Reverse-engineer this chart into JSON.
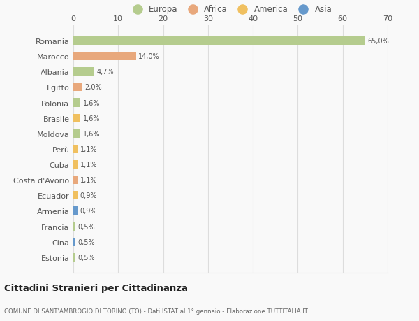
{
  "countries": [
    "Romania",
    "Marocco",
    "Albania",
    "Egitto",
    "Polonia",
    "Brasile",
    "Moldova",
    "Perù",
    "Cuba",
    "Costa d'Avorio",
    "Ecuador",
    "Armenia",
    "Francia",
    "Cina",
    "Estonia"
  ],
  "values": [
    65.0,
    14.0,
    4.7,
    2.0,
    1.6,
    1.6,
    1.6,
    1.1,
    1.1,
    1.1,
    0.9,
    0.9,
    0.5,
    0.5,
    0.5
  ],
  "labels": [
    "65,0%",
    "14,0%",
    "4,7%",
    "2,0%",
    "1,6%",
    "1,6%",
    "1,6%",
    "1,1%",
    "1,1%",
    "1,1%",
    "0,9%",
    "0,9%",
    "0,5%",
    "0,5%",
    "0,5%"
  ],
  "continents": [
    "Europa",
    "Africa",
    "Europa",
    "Africa",
    "Europa",
    "America",
    "Europa",
    "America",
    "America",
    "Africa",
    "America",
    "Asia",
    "Europa",
    "Asia",
    "Europa"
  ],
  "continent_colors": {
    "Europa": "#b5cc8e",
    "Africa": "#e8a87c",
    "America": "#f0c060",
    "Asia": "#6699cc"
  },
  "legend_order": [
    "Europa",
    "Africa",
    "America",
    "Asia"
  ],
  "title": "Cittadini Stranieri per Cittadinanza",
  "subtitle": "COMUNE DI SANT'AMBROGIO DI TORINO (TO) - Dati ISTAT al 1° gennaio - Elaborazione TUTTITALIA.IT",
  "xlim": [
    0,
    70
  ],
  "xticks": [
    0,
    10,
    20,
    30,
    40,
    50,
    60,
    70
  ],
  "bg_color": "#f9f9f9",
  "grid_color": "#dddddd"
}
